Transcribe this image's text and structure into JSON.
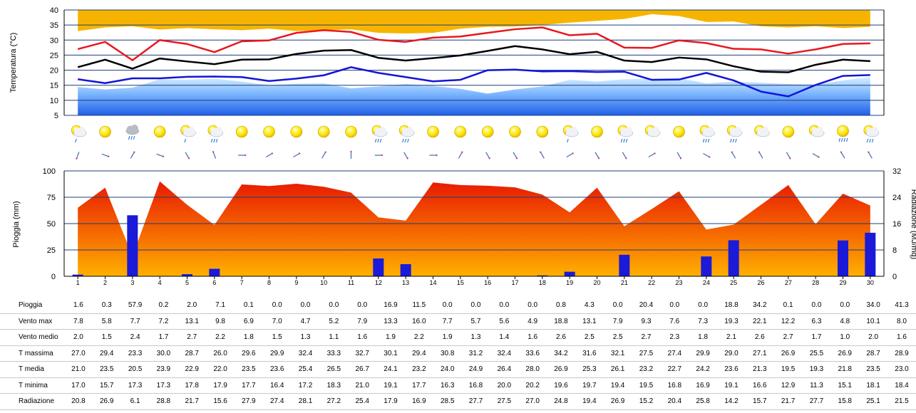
{
  "chart_data": [
    {
      "type": "area+line",
      "ylabel": "Temperatura (°C)",
      "ylim": [
        5,
        40
      ],
      "yticks": [
        5,
        10,
        15,
        20,
        25,
        30,
        35,
        40
      ],
      "grid": true,
      "x": [
        1,
        2,
        3,
        4,
        5,
        6,
        7,
        8,
        9,
        10,
        11,
        12,
        13,
        14,
        15,
        16,
        17,
        18,
        19,
        20,
        21,
        22,
        23,
        24,
        25,
        26,
        27,
        28,
        29,
        30
      ],
      "series": [
        {
          "key": "tmax",
          "color": "#e8171f",
          "values": [
            27.0,
            29.4,
            23.3,
            30.0,
            28.7,
            26.0,
            29.6,
            29.9,
            32.4,
            33.3,
            32.7,
            30.1,
            29.4,
            30.8,
            31.2,
            32.4,
            33.6,
            34.2,
            31.6,
            32.1,
            27.5,
            27.4,
            29.9,
            29.0,
            27.1,
            26.9,
            25.5,
            26.9,
            28.7,
            28.9
          ]
        },
        {
          "key": "tmed",
          "color": "#000000",
          "values": [
            21.0,
            23.5,
            20.5,
            23.9,
            22.9,
            22.0,
            23.5,
            23.6,
            25.4,
            26.5,
            26.7,
            24.1,
            23.2,
            24.0,
            24.9,
            26.4,
            28.0,
            26.9,
            25.3,
            26.1,
            23.2,
            22.7,
            24.2,
            23.6,
            21.3,
            19.5,
            19.3,
            21.8,
            23.5,
            23.0
          ]
        },
        {
          "key": "tmin",
          "color": "#1515d6",
          "values": [
            17.0,
            15.7,
            17.3,
            17.3,
            17.8,
            17.9,
            17.7,
            16.4,
            17.2,
            18.3,
            21.0,
            19.1,
            17.7,
            16.3,
            16.8,
            20.0,
            20.2,
            19.6,
            19.7,
            19.4,
            19.5,
            16.8,
            16.9,
            19.1,
            16.6,
            12.9,
            11.3,
            15.1,
            18.1,
            18.4
          ]
        }
      ],
      "band_upper": {
        "color": "#f6b400",
        "lower": [
          33.0,
          34.2,
          34.6,
          33.5,
          34.0,
          33.6,
          33.3,
          33.8,
          33.0,
          33.3,
          33.6,
          32.4,
          32.2,
          32.4,
          33.8,
          34.4,
          34.5,
          35.0,
          35.8,
          36.4,
          37.0,
          38.6,
          38.0,
          36.0,
          36.2,
          34.6,
          34.2,
          34.6,
          34.0,
          34.4
        ]
      },
      "band_lower": {
        "color": "#1e6ee8",
        "upper": [
          14.4,
          13.6,
          14.2,
          17.0,
          16.8,
          17.2,
          16.2,
          15.0,
          15.5,
          15.6,
          14.0,
          14.6,
          15.4,
          14.8,
          13.8,
          12.2,
          13.6,
          14.6,
          16.8,
          16.2,
          17.0,
          17.2,
          17.4,
          15.6,
          16.2,
          15.8,
          15.4,
          15.2,
          16.6,
          17.8
        ]
      }
    },
    {
      "type": "bar+area",
      "ylabel": "Pioggia (mm)",
      "y2label": "Radiazione (MJ/mq)",
      "ylim": [
        0,
        100
      ],
      "yticks": [
        0,
        25,
        50,
        75,
        100
      ],
      "y2lim": [
        0,
        32
      ],
      "y2ticks": [
        0,
        8,
        16,
        24,
        32
      ],
      "grid": true,
      "x": [
        1,
        2,
        3,
        4,
        5,
        6,
        7,
        8,
        9,
        10,
        11,
        12,
        13,
        14,
        15,
        16,
        17,
        18,
        19,
        20,
        21,
        22,
        23,
        24,
        25,
        26,
        27,
        28,
        29,
        30
      ],
      "rain": {
        "color": "#1a1ad8",
        "values": [
          1.6,
          0.3,
          57.9,
          0.2,
          2.0,
          7.1,
          0.1,
          0.0,
          0.0,
          0.0,
          0.0,
          16.9,
          11.5,
          0.0,
          0.0,
          0.0,
          0.0,
          0.8,
          4.3,
          0.0,
          20.4,
          0.0,
          0.0,
          18.8,
          34.2,
          0.1,
          0.0,
          0.0,
          34.0,
          41.3
        ]
      },
      "radiation": {
        "values": [
          20.8,
          26.9,
          6.1,
          28.8,
          21.7,
          15.6,
          27.9,
          27.4,
          28.1,
          27.2,
          25.4,
          17.9,
          16.9,
          28.5,
          27.7,
          27.5,
          27.0,
          24.8,
          19.4,
          26.9,
          15.2,
          20.4,
          25.8,
          14.2,
          15.7,
          21.7,
          27.7,
          15.8,
          25.1,
          21.5
        ]
      }
    }
  ],
  "weather_icons": [
    "sun-cloud-drizzle",
    "sun",
    "cloud-rain",
    "sun",
    "sun-cloud-drizzle",
    "sun-cloud-rain",
    "sun",
    "sun",
    "sun",
    "sun",
    "sun",
    "sun-cloud-rain",
    "sun-cloud-rain",
    "sun",
    "sun",
    "sun",
    "sun",
    "sun",
    "sun-cloud-drizzle",
    "sun",
    "sun-cloud-rain",
    "sun-cloud",
    "sun",
    "sun-cloud-rain",
    "sun-cloud-rain",
    "sun-cloud",
    "sun",
    "sun-cloud",
    "sun-rain",
    "sun-cloud-rain"
  ],
  "wind_dir": [
    200,
    110,
    30,
    110,
    150,
    340,
    90,
    60,
    60,
    30,
    0,
    90,
    150,
    90,
    30,
    150,
    150,
    330,
    60,
    150,
    150,
    60,
    150,
    120,
    330,
    330,
    150,
    120,
    330,
    330
  ],
  "table": {
    "rows": [
      {
        "label": "Pioggia",
        "values": [
          "1.6",
          "0.3",
          "57.9",
          "0.2",
          "2.0",
          "7.1",
          "0.1",
          "0.0",
          "0.0",
          "0.0",
          "0.0",
          "16.9",
          "11.5",
          "0.0",
          "0.0",
          "0.0",
          "0.0",
          "0.8",
          "4.3",
          "0.0",
          "20.4",
          "0.0",
          "0.0",
          "18.8",
          "34.2",
          "0.1",
          "0.0",
          "0.0",
          "34.0",
          "41.3"
        ]
      },
      {
        "label": "Vento max",
        "values": [
          "7.8",
          "5.8",
          "7.7",
          "7.2",
          "13.1",
          "9.8",
          "6.9",
          "7.0",
          "4.7",
          "5.2",
          "7.9",
          "13.3",
          "16.0",
          "7.7",
          "5.7",
          "5.6",
          "4.9",
          "18.8",
          "13.1",
          "7.9",
          "9.3",
          "7.6",
          "7.3",
          "19.3",
          "22.1",
          "12.2",
          "6.3",
          "4.8",
          "10.1",
          "8.0"
        ]
      },
      {
        "label": "Vento medio",
        "values": [
          "2.0",
          "1.5",
          "2.4",
          "1.7",
          "2.7",
          "2.2",
          "1.8",
          "1.5",
          "1.3",
          "1.1",
          "1.6",
          "1.9",
          "2.2",
          "1.9",
          "1.3",
          "1.4",
          "1.6",
          "2.6",
          "2.5",
          "2.5",
          "2.7",
          "2.3",
          "1.8",
          "2.1",
          "2.6",
          "2.7",
          "1.7",
          "1.0",
          "2.0",
          "1.6"
        ]
      },
      {
        "label": "T massima",
        "values": [
          "27.0",
          "29.4",
          "23.3",
          "30.0",
          "28.7",
          "26.0",
          "29.6",
          "29.9",
          "32.4",
          "33.3",
          "32.7",
          "30.1",
          "29.4",
          "30.8",
          "31.2",
          "32.4",
          "33.6",
          "34.2",
          "31.6",
          "32.1",
          "27.5",
          "27.4",
          "29.9",
          "29.0",
          "27.1",
          "26.9",
          "25.5",
          "26.9",
          "28.7",
          "28.9"
        ]
      },
      {
        "label": "T media",
        "values": [
          "21.0",
          "23.5",
          "20.5",
          "23.9",
          "22.9",
          "22.0",
          "23.5",
          "23.6",
          "25.4",
          "26.5",
          "26.7",
          "24.1",
          "23.2",
          "24.0",
          "24.9",
          "26.4",
          "28.0",
          "26.9",
          "25.3",
          "26.1",
          "23.2",
          "22.7",
          "24.2",
          "23.6",
          "21.3",
          "19.5",
          "19.3",
          "21.8",
          "23.5",
          "23.0"
        ]
      },
      {
        "label": "T minima",
        "values": [
          "17.0",
          "15.7",
          "17.3",
          "17.3",
          "17.8",
          "17.9",
          "17.7",
          "16.4",
          "17.2",
          "18.3",
          "21.0",
          "19.1",
          "17.7",
          "16.3",
          "16.8",
          "20.0",
          "20.2",
          "19.6",
          "19.7",
          "19.4",
          "19.5",
          "16.8",
          "16.9",
          "19.1",
          "16.6",
          "12.9",
          "11.3",
          "15.1",
          "18.1",
          "18.4"
        ]
      },
      {
        "label": "Radiazione",
        "values": [
          "20.8",
          "26.9",
          "6.1",
          "28.8",
          "21.7",
          "15.6",
          "27.9",
          "27.4",
          "28.1",
          "27.2",
          "25.4",
          "17.9",
          "16.9",
          "28.5",
          "27.7",
          "27.5",
          "27.0",
          "24.8",
          "19.4",
          "26.9",
          "15.2",
          "20.4",
          "25.8",
          "14.2",
          "15.7",
          "21.7",
          "27.7",
          "15.8",
          "25.1",
          "21.5"
        ]
      }
    ]
  }
}
